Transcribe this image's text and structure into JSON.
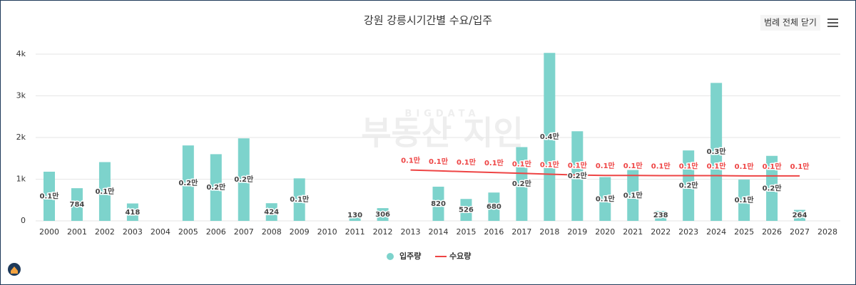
{
  "chart_data": {
    "type": "bar_line",
    "title": "강원 강릉시기간별 수요/입주",
    "button": "범례 전체 닫기",
    "watermark": [
      "BIGDATA",
      "부동산 지인"
    ],
    "categories": [
      "2000",
      "2001",
      "2002",
      "2003",
      "2004",
      "2005",
      "2006",
      "2007",
      "2008",
      "2009",
      "2010",
      "2011",
      "2012",
      "2013",
      "2014",
      "2015",
      "2016",
      "2017",
      "2018",
      "2019",
      "2020",
      "2021",
      "2022",
      "2023",
      "2024",
      "2025",
      "2026",
      "2027",
      "2028"
    ],
    "series": [
      {
        "name": "입주량",
        "type": "bar",
        "color": "#7dd3cc",
        "values": [
          1180,
          784,
          1410,
          418,
          null,
          1810,
          1600,
          1980,
          424,
          1020,
          null,
          130,
          306,
          null,
          820,
          526,
          680,
          1770,
          4030,
          2150,
          1050,
          1220,
          238,
          1690,
          3310,
          990,
          1560,
          264,
          null
        ],
        "value_labels": [
          "0.1만",
          null,
          "0.1만",
          null,
          null,
          "0.2만",
          "0.2만",
          "0.2만",
          null,
          "0.1만",
          null,
          null,
          null,
          null,
          null,
          null,
          null,
          "0.2만",
          "0.4만",
          "0.2만",
          "0.1만",
          "0.1만",
          null,
          "0.2만",
          "0.3만",
          "0.1만",
          "0.2만",
          null,
          null
        ]
      },
      {
        "name": "수요량",
        "type": "line",
        "color": "#ee4444",
        "values": [
          null,
          null,
          null,
          null,
          null,
          null,
          null,
          null,
          null,
          null,
          null,
          null,
          null,
          1220,
          1200,
          1180,
          1160,
          1140,
          1120,
          1100,
          1090,
          1090,
          1085,
          1085,
          1085,
          1080,
          1080,
          1080,
          null
        ],
        "value_labels": [
          null,
          null,
          null,
          null,
          null,
          null,
          null,
          null,
          null,
          null,
          null,
          null,
          null,
          "0.1만",
          "0.1만",
          "0.1만",
          "0.1만",
          "0.1만",
          "0.1만",
          "0.1만",
          "0.1만",
          "0.1만",
          "0.1만",
          "0.1만",
          "0.1만",
          "0.1만",
          "0.1만",
          "0.1만",
          null
        ]
      }
    ],
    "ylim": [
      0,
      4000
    ],
    "yticks": [
      0,
      {
        "value": 1000,
        "label": "1k"
      },
      {
        "value": 2000,
        "label": "2k"
      },
      {
        "value": 3000,
        "label": "3k"
      },
      {
        "value": 4000,
        "label": "4k"
      }
    ],
    "grid": true,
    "legend": "bottom"
  }
}
